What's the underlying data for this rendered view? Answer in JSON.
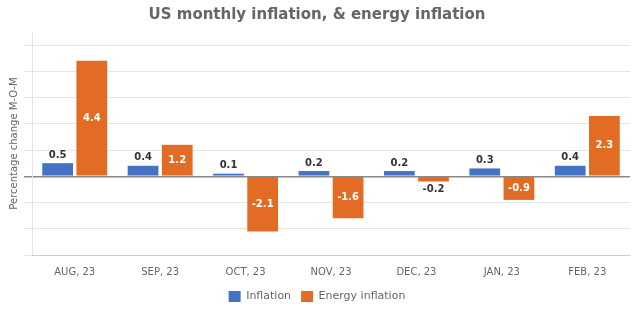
{
  "chart_data": {
    "type": "bar",
    "title": "US monthly inflation, & energy inflation",
    "ylabel": "Percentage change M-O-M",
    "categories": [
      "AUG, 23",
      "SEP, 23",
      "OCT, 23",
      "NOV, 23",
      "DEC, 23",
      "JAN, 23",
      "FEB, 23"
    ],
    "series": [
      {
        "name": "Inflation",
        "color": "#4472C4",
        "values": [
          0.5,
          0.4,
          0.1,
          0.2,
          0.2,
          0.3,
          0.4
        ]
      },
      {
        "name": "Energy inflation",
        "color": "#E36C24",
        "values": [
          4.4,
          1.2,
          -2.1,
          -1.6,
          -0.2,
          -0.9,
          2.3
        ]
      }
    ],
    "ylim": [
      -3.0,
      5.5
    ],
    "yticks": [
      -3,
      -2,
      -1,
      0,
      1,
      2,
      3,
      4,
      5
    ],
    "grid": true,
    "legend": "bottom",
    "data_labels": true,
    "tick_labels": "x"
  }
}
